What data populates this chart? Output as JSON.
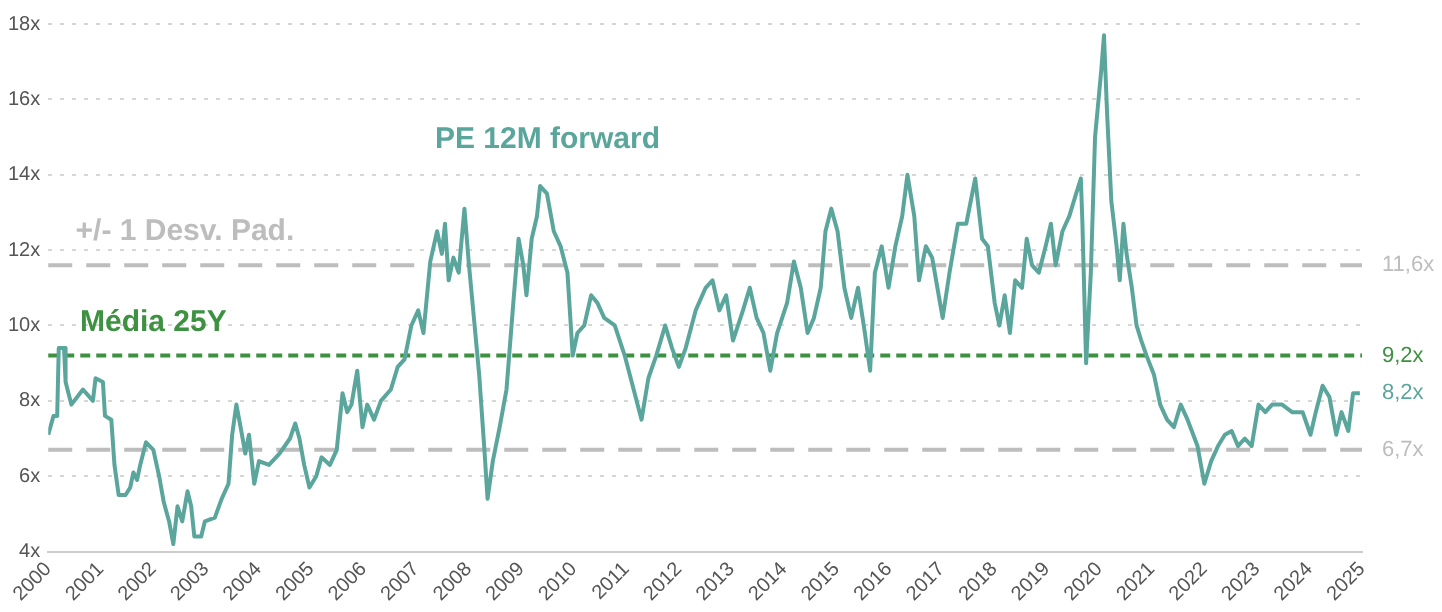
{
  "chart_data": {
    "type": "line",
    "xlim": [
      2000,
      2025
    ],
    "xticks": [
      2000,
      2001,
      2002,
      2003,
      2004,
      2005,
      2006,
      2007,
      2008,
      2009,
      2010,
      2011,
      2012,
      2013,
      2014,
      2015,
      2016,
      2017,
      2018,
      2019,
      2020,
      2021,
      2022,
      2023,
      2024,
      2025
    ],
    "ylim": [
      4,
      18
    ],
    "yticks": [
      {
        "value": 4,
        "label": "4x"
      },
      {
        "value": 6,
        "label": "6x"
      },
      {
        "value": 8,
        "label": "8x"
      },
      {
        "value": 10,
        "label": "10x"
      },
      {
        "value": 12,
        "label": "12x"
      },
      {
        "value": 14,
        "label": "14x"
      },
      {
        "value": 16,
        "label": "16x"
      },
      {
        "value": 18,
        "label": "18x"
      }
    ],
    "grid": "y",
    "legend": false,
    "marker": "none",
    "series": [
      {
        "name": "PE 12M forward",
        "color": "#5ba69c",
        "line_style": "solid",
        "x": [
          2000.0,
          2000.1,
          2000.17,
          2000.2,
          2000.3,
          2000.33,
          2000.44,
          2000.66,
          2000.85,
          2000.9,
          2001.04,
          2001.08,
          2001.2,
          2001.26,
          2001.34,
          2001.47,
          2001.56,
          2001.62,
          2001.69,
          2001.75,
          2001.86,
          2002.0,
          2002.11,
          2002.2,
          2002.3,
          2002.38,
          2002.46,
          2002.55,
          2002.65,
          2002.72,
          2002.78,
          2002.91,
          2002.98,
          2003.17,
          2003.3,
          2003.43,
          2003.5,
          2003.58,
          2003.66,
          2003.75,
          2003.82,
          2003.92,
          2004.01,
          2004.2,
          2004.4,
          2004.6,
          2004.7,
          2004.78,
          2004.87,
          2004.97,
          2005.1,
          2005.2,
          2005.36,
          2005.49,
          2005.6,
          2005.69,
          2005.77,
          2005.88,
          2005.98,
          2006.07,
          2006.2,
          2006.33,
          2006.52,
          2006.65,
          2006.78,
          2006.91,
          2007.04,
          2007.14,
          2007.27,
          2007.4,
          2007.49,
          2007.55,
          2007.62,
          2007.71,
          2007.81,
          2007.92,
          2008.0,
          2008.1,
          2008.2,
          2008.3,
          2008.36,
          2008.46,
          2008.59,
          2008.72,
          2008.85,
          2008.95,
          2009.04,
          2009.1,
          2009.2,
          2009.3,
          2009.36,
          2009.49,
          2009.62,
          2009.75,
          2009.88,
          2009.98,
          2010.07,
          2010.2,
          2010.33,
          2010.45,
          2010.58,
          2010.78,
          2010.97,
          2011.14,
          2011.29,
          2011.42,
          2011.57,
          2011.74,
          2011.87,
          2012.0,
          2012.13,
          2012.32,
          2012.51,
          2012.64,
          2012.77,
          2012.9,
          2013.03,
          2013.22,
          2013.35,
          2013.48,
          2013.61,
          2013.74,
          2013.87,
          2014.06,
          2014.19,
          2014.32,
          2014.45,
          2014.57,
          2014.7,
          2014.79,
          2014.9,
          2015.02,
          2015.15,
          2015.28,
          2015.41,
          2015.54,
          2015.64,
          2015.73,
          2015.86,
          2015.99,
          2016.12,
          2016.25,
          2016.35,
          2016.48,
          2016.57,
          2016.7,
          2016.82,
          2017.02,
          2017.15,
          2017.31,
          2017.47,
          2017.64,
          2017.77,
          2017.88,
          2018.01,
          2018.1,
          2018.2,
          2018.3,
          2018.4,
          2018.53,
          2018.62,
          2018.72,
          2018.85,
          2018.98,
          2019.08,
          2019.17,
          2019.3,
          2019.43,
          2019.56,
          2019.65,
          2019.68,
          2019.75,
          2019.84,
          2019.92,
          2020.0,
          2020.04,
          2020.09,
          2020.15,
          2020.23,
          2020.33,
          2020.39,
          2020.46,
          2020.52,
          2020.62,
          2020.71,
          2020.8,
          2020.9,
          2021.04,
          2021.16,
          2021.29,
          2021.42,
          2021.55,
          2021.68,
          2021.87,
          2022.0,
          2022.13,
          2022.26,
          2022.39,
          2022.52,
          2022.64,
          2022.77,
          2022.9,
          2023.03,
          2023.16,
          2023.29,
          2023.48,
          2023.67,
          2023.87,
          2024.02,
          2024.12,
          2024.25,
          2024.38,
          2024.51,
          2024.61,
          2024.74,
          2024.83,
          2024.96
        ],
        "values": [
          7.1,
          7.6,
          7.6,
          9.4,
          9.4,
          8.5,
          7.9,
          8.3,
          8.0,
          8.6,
          8.5,
          7.6,
          7.5,
          6.3,
          5.5,
          5.5,
          5.7,
          6.1,
          5.9,
          6.3,
          6.9,
          6.7,
          6.0,
          5.3,
          4.8,
          4.2,
          5.2,
          4.8,
          5.6,
          5.2,
          4.4,
          4.4,
          4.8,
          4.9,
          5.4,
          5.8,
          7.1,
          7.9,
          7.3,
          6.6,
          7.1,
          5.8,
          6.4,
          6.3,
          6.6,
          7.0,
          7.4,
          7.0,
          6.3,
          5.7,
          6.0,
          6.5,
          6.3,
          6.7,
          8.2,
          7.7,
          7.9,
          8.8,
          7.3,
          7.9,
          7.5,
          8.0,
          8.3,
          8.9,
          9.1,
          10.0,
          10.4,
          9.8,
          11.7,
          12.5,
          11.9,
          12.7,
          11.2,
          11.8,
          11.4,
          13.1,
          11.7,
          10.2,
          8.7,
          6.7,
          5.4,
          6.4,
          7.3,
          8.3,
          10.6,
          12.3,
          11.6,
          10.8,
          12.3,
          12.9,
          13.7,
          13.5,
          12.5,
          12.1,
          11.4,
          9.2,
          9.8,
          10.0,
          10.8,
          10.6,
          10.2,
          10.0,
          9.2,
          8.3,
          7.5,
          8.6,
          9.2,
          10.0,
          9.4,
          8.9,
          9.4,
          10.4,
          11.0,
          11.2,
          10.4,
          10.8,
          9.6,
          10.4,
          11.0,
          10.2,
          9.8,
          8.8,
          9.8,
          10.6,
          11.7,
          11.0,
          9.8,
          10.2,
          11.0,
          12.5,
          13.1,
          12.5,
          11.0,
          10.2,
          11.0,
          9.8,
          8.8,
          11.4,
          12.1,
          11.0,
          12.1,
          12.9,
          14.0,
          12.9,
          11.2,
          12.1,
          11.8,
          10.2,
          11.4,
          12.7,
          12.7,
          13.9,
          12.3,
          12.1,
          10.6,
          10.0,
          10.8,
          9.8,
          11.2,
          11.0,
          12.3,
          11.6,
          11.4,
          12.1,
          12.7,
          11.6,
          12.5,
          12.9,
          13.5,
          13.9,
          12.7,
          9.0,
          11.4,
          15.0,
          16.2,
          16.8,
          17.7,
          15.6,
          13.3,
          12.1,
          11.2,
          12.7,
          11.9,
          11.0,
          10.0,
          9.6,
          9.2,
          8.7,
          7.9,
          7.5,
          7.3,
          7.9,
          7.5,
          6.8,
          5.8,
          6.4,
          6.8,
          7.1,
          7.2,
          6.8,
          7.0,
          6.8,
          7.9,
          7.7,
          7.9,
          7.9,
          7.7,
          7.7,
          7.1,
          7.7,
          8.4,
          8.1,
          7.1,
          7.7,
          7.2,
          8.2,
          8.2
        ],
        "value_labels": [
          null,
          null,
          null,
          null,
          null,
          null,
          null,
          null,
          null,
          null,
          null,
          null,
          null,
          null,
          null,
          null,
          null,
          null,
          null,
          null,
          null,
          null,
          null,
          null,
          null,
          null,
          null,
          null,
          null,
          null,
          null,
          null,
          null,
          null,
          null,
          null,
          null,
          null,
          null,
          null,
          null,
          null,
          null,
          null,
          null,
          null,
          null,
          null,
          null,
          null,
          null,
          null,
          null,
          null,
          null,
          null,
          null,
          null,
          null,
          null,
          null,
          null,
          null,
          null,
          null,
          null,
          null,
          null,
          null,
          null,
          null,
          null,
          null,
          null,
          null,
          null,
          null,
          null,
          null,
          null,
          null,
          null,
          null,
          null,
          null,
          null,
          null,
          null,
          null,
          null,
          null,
          null,
          null,
          null,
          null,
          null,
          null,
          null,
          null,
          null,
          null,
          null,
          null,
          null,
          null,
          null,
          null,
          null,
          null,
          null,
          null,
          null,
          null,
          null,
          null,
          null,
          null,
          null,
          null,
          null,
          null,
          null,
          null,
          null,
          null,
          null,
          null,
          null,
          null,
          null,
          null,
          null,
          null,
          null,
          null,
          null,
          null,
          null,
          null,
          null,
          null,
          null,
          null,
          null,
          null,
          null,
          null,
          null,
          null,
          null,
          null,
          null,
          null,
          null,
          null,
          null,
          null,
          null,
          null,
          null,
          null,
          null,
          null,
          null,
          null,
          null,
          null,
          null,
          null,
          null,
          null,
          null,
          null,
          null,
          null,
          null,
          null,
          null,
          null,
          null,
          null,
          null,
          null,
          null,
          null,
          null,
          null,
          null,
          null,
          null,
          null,
          null,
          null,
          null,
          null,
          null,
          null,
          null,
          null,
          null,
          null,
          null,
          null,
          null,
          null,
          null,
          null,
          null,
          null,
          null,
          null,
          null,
          null,
          null,
          null,
          null,
          "8,2x"
        ]
      }
    ],
    "ref_lines": [
      {
        "axis": "y",
        "value": 11.6,
        "label": "11,6x",
        "color": "#bdbdbd",
        "line_style": "dashed"
      },
      {
        "axis": "y",
        "value": 9.2,
        "label": "9,2x",
        "color": "#3d9140",
        "line_style": "dotted"
      },
      {
        "axis": "y",
        "value": 6.7,
        "label": "6,7x",
        "color": "#bdbdbd",
        "line_style": "dashed"
      }
    ],
    "annotations": [
      {
        "text": "+/- 1 Desv. Pad.",
        "x": 2002.6,
        "y": 11.6
      },
      {
        "text": "Média 25Y",
        "x": 2002.0,
        "y": 9.2
      }
    ]
  }
}
